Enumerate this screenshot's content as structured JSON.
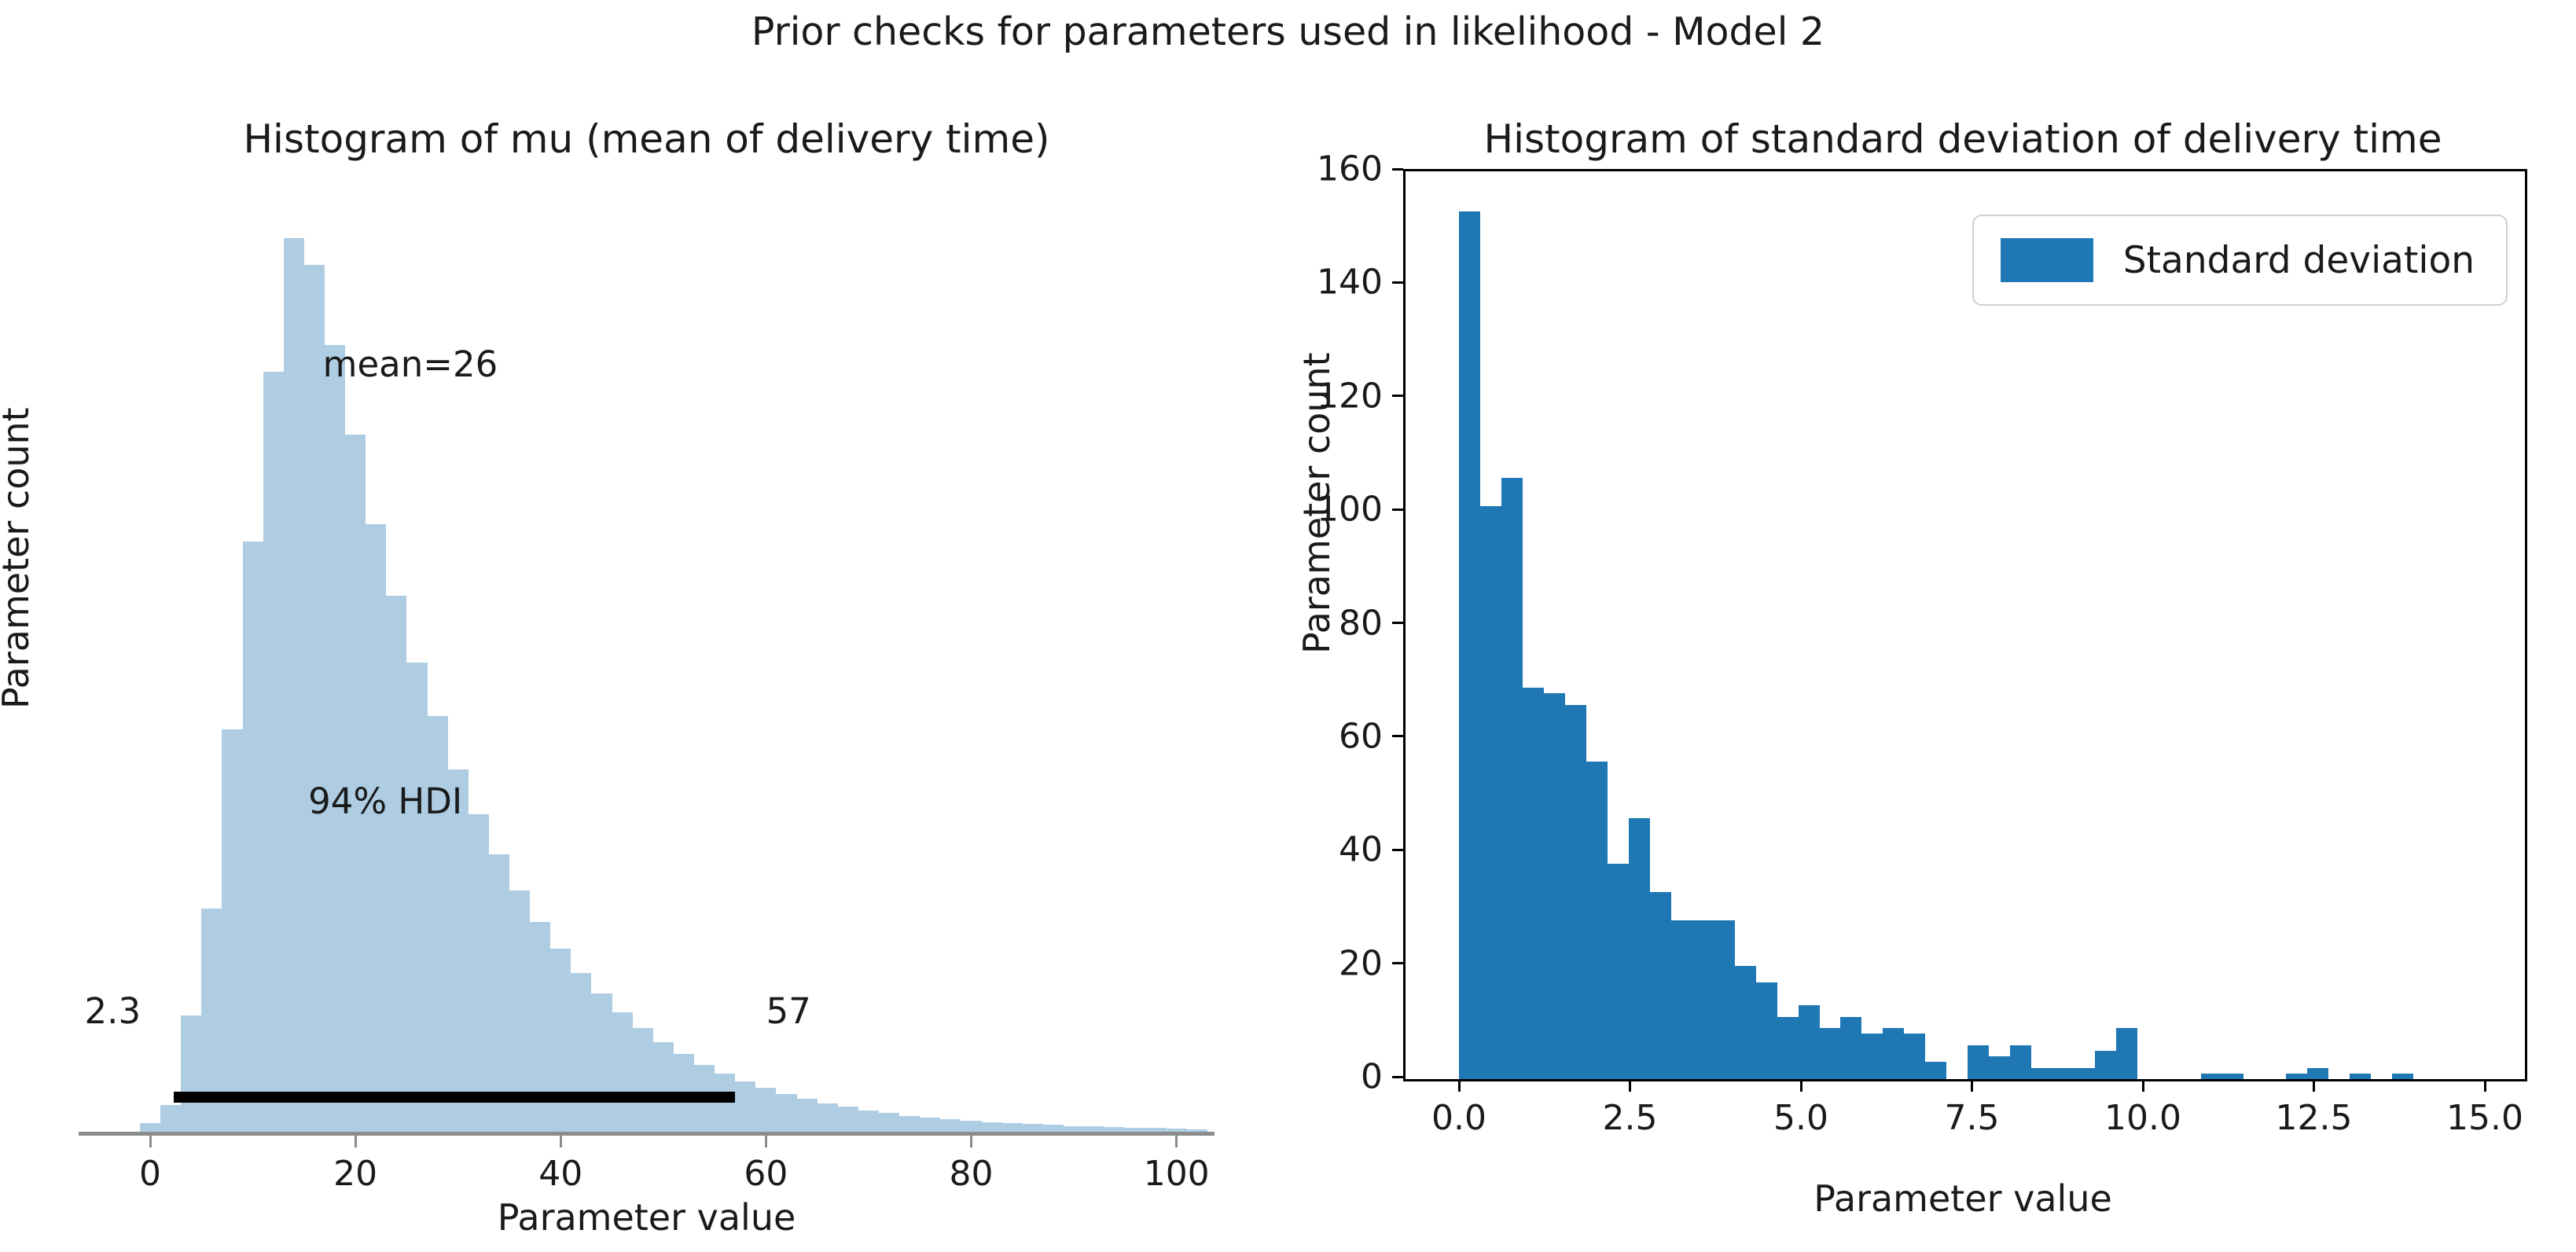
{
  "suptitle": "Prior checks for parameters used in likelihood - Model 2",
  "left": {
    "title": "Histogram of mu (mean of delivery time)",
    "xlabel": "Parameter value",
    "ylabel": "Parameter count",
    "annotations": {
      "mean_label": "mean=26",
      "hdi_label": "94% HDI",
      "hdi_lower": "2.3",
      "hdi_upper": "57"
    }
  },
  "right": {
    "title": "Histogram of standard deviation of delivery time",
    "xlabel": "Parameter value",
    "ylabel": "Parameter count",
    "legend_label": "Standard deviation"
  },
  "chart_data": [
    {
      "type": "bar",
      "subtype": "histogram",
      "title": "Histogram of mu (mean of delivery time)",
      "xlabel": "Parameter value",
      "ylabel": "Parameter count",
      "bar_color": "#aecde3",
      "xlim": [
        -6.97,
        103.7
      ],
      "xticks": [
        0,
        20,
        40,
        60,
        80,
        100
      ],
      "xtick_labels": [
        "0",
        "20",
        "40",
        "60",
        "80",
        "100"
      ],
      "yticks_shown": false,
      "ylim_relative": [
        0,
        1.02
      ],
      "bin_start": -1,
      "bin_width": 2,
      "relative_heights": [
        0.01,
        0.03,
        0.13,
        0.25,
        0.45,
        0.66,
        0.85,
        1.0,
        0.97,
        0.88,
        0.78,
        0.68,
        0.6,
        0.525,
        0.465,
        0.405,
        0.355,
        0.31,
        0.27,
        0.235,
        0.205,
        0.178,
        0.155,
        0.134,
        0.116,
        0.1,
        0.087,
        0.075,
        0.065,
        0.056,
        0.049,
        0.042,
        0.037,
        0.032,
        0.028,
        0.024,
        0.021,
        0.018,
        0.016,
        0.014,
        0.012,
        0.011,
        0.0095,
        0.0085,
        0.0075,
        0.0065,
        0.006,
        0.005,
        0.0045,
        0.004,
        0.0035,
        0.003
      ],
      "mean": 26,
      "hdi_interval": [
        2.3,
        57
      ],
      "hdi_percent": "94% HDI",
      "annotation_positions": {
        "mean_label": {
          "x_pct": 29.2,
          "y_pct": 13.5
        },
        "hdi_label": {
          "x_pct": 27.0,
          "y_pct": 61.5
        },
        "hdi_lower": {
          "x_pct": 3.0,
          "y_pct": 84.5
        },
        "hdi_upper": {
          "x_pct": 62.5,
          "y_pct": 84.5
        },
        "hdi_line_top_pct": 95.6
      }
    },
    {
      "type": "bar",
      "subtype": "histogram",
      "title": "Histogram of standard deviation of delivery time",
      "xlabel": "Parameter value",
      "ylabel": "Parameter count",
      "legend": {
        "label": "Standard deviation",
        "position": "upper right",
        "swatch_color": "#1f77b4"
      },
      "bar_color": "#1f77b4",
      "xlim": [
        -0.782,
        15.586
      ],
      "xticks": [
        0.0,
        2.5,
        5.0,
        7.5,
        10.0,
        12.5,
        15.0
      ],
      "xtick_labels": [
        "0.0",
        "2.5",
        "5.0",
        "7.5",
        "10.0",
        "12.5",
        "15.0"
      ],
      "ylim": [
        0,
        160
      ],
      "yticks": [
        0,
        20,
        40,
        60,
        80,
        100,
        120,
        140,
        160
      ],
      "ytick_labels": [
        "0",
        "20",
        "40",
        "60",
        "80",
        "100",
        "120",
        "140",
        "160"
      ],
      "bin_start": 0,
      "bin_width": 0.31,
      "counts": [
        153,
        101,
        106,
        69,
        68,
        66,
        56,
        38,
        46,
        33,
        28,
        28,
        28,
        20,
        17,
        11,
        13,
        9,
        11,
        8,
        9,
        8,
        3,
        0,
        6,
        4,
        6,
        2,
        2,
        2,
        5,
        9,
        0,
        0,
        0,
        1,
        1,
        0,
        0,
        1,
        2,
        0,
        1,
        0,
        1
      ]
    }
  ]
}
